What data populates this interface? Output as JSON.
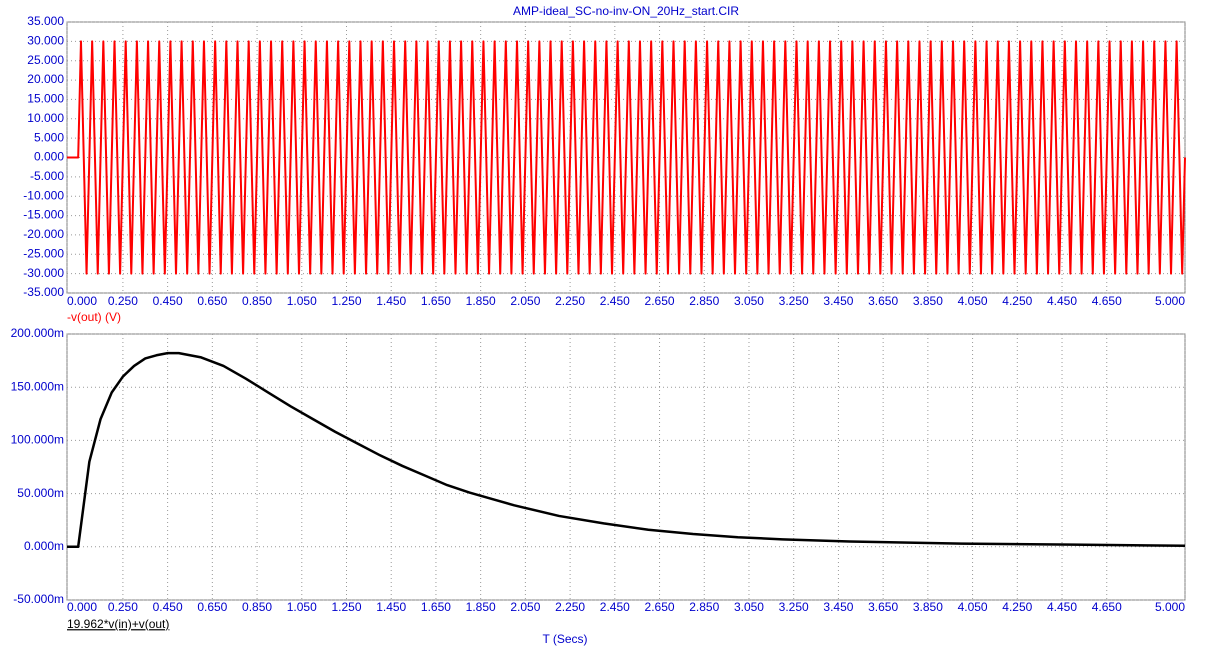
{
  "chart_data": [
    {
      "type": "line",
      "title": "AMP-ideal_SC-no-inv-ON_20Hz_start.CIR",
      "xlim": [
        0,
        5
      ],
      "ylim": [
        -35,
        35
      ],
      "xticks": [
        {
          "value": 0,
          "label": "0.000"
        },
        {
          "value": 0.25,
          "label": "0.250"
        },
        {
          "value": 0.45,
          "label": "0.450"
        },
        {
          "value": 0.65,
          "label": "0.650"
        },
        {
          "value": 0.85,
          "label": "0.850"
        },
        {
          "value": 1.05,
          "label": "1.050"
        },
        {
          "value": 1.25,
          "label": "1.250"
        },
        {
          "value": 1.45,
          "label": "1.450"
        },
        {
          "value": 1.65,
          "label": "1.650"
        },
        {
          "value": 1.85,
          "label": "1.850"
        },
        {
          "value": 2.05,
          "label": "2.050"
        },
        {
          "value": 2.25,
          "label": "2.250"
        },
        {
          "value": 2.45,
          "label": "2.450"
        },
        {
          "value": 2.65,
          "label": "2.650"
        },
        {
          "value": 2.85,
          "label": "2.850"
        },
        {
          "value": 3.05,
          "label": "3.050"
        },
        {
          "value": 3.25,
          "label": "3.250"
        },
        {
          "value": 3.45,
          "label": "3.450"
        },
        {
          "value": 3.65,
          "label": "3.650"
        },
        {
          "value": 3.85,
          "label": "3.850"
        },
        {
          "value": 4.05,
          "label": "4.050"
        },
        {
          "value": 4.25,
          "label": "4.250"
        },
        {
          "value": 4.45,
          "label": "4.450"
        },
        {
          "value": 4.65,
          "label": "4.650"
        },
        {
          "value": 5,
          "label": "5.000"
        }
      ],
      "yticks": [
        {
          "value": 35,
          "label": "35.000"
        },
        {
          "value": 30,
          "label": "30.000"
        },
        {
          "value": 25,
          "label": "25.000"
        },
        {
          "value": 20,
          "label": "20.000"
        },
        {
          "value": 15,
          "label": "15.000"
        },
        {
          "value": 10,
          "label": "10.000"
        },
        {
          "value": 5,
          "label": "5.000"
        },
        {
          "value": 0,
          "label": "0.000"
        },
        {
          "value": -5,
          "label": "-5.000"
        },
        {
          "value": -10,
          "label": "-10.000"
        },
        {
          "value": -15,
          "label": "-15.000"
        },
        {
          "value": -20,
          "label": "-20.000"
        },
        {
          "value": -25,
          "label": "-25.000"
        },
        {
          "value": -30,
          "label": "-30.000"
        },
        {
          "value": -35,
          "label": "-35.000"
        }
      ],
      "grid": true,
      "x": [
        0,
        0.05,
        0.0625,
        0.0875,
        0.1125,
        0.1375,
        0.1625,
        0.1875,
        0.2125,
        0.2375,
        0.2625,
        0.2875,
        0.3125,
        0.3375,
        0.3625,
        0.3875,
        0.4125,
        0.4375,
        0.4625,
        0.4875,
        0.5125,
        0.5375,
        0.5625,
        0.5875,
        0.6125,
        0.6375,
        0.6625,
        0.6875,
        0.7125,
        0.7375,
        0.7625,
        0.7875,
        0.8125,
        0.8375,
        0.8625,
        0.8875,
        0.9125,
        0.9375,
        0.9625,
        0.9875,
        1.0125,
        1.0375,
        1.0625,
        1.0875,
        1.1125,
        1.1375,
        1.1625,
        1.1875,
        1.2125,
        1.2375,
        1.2625,
        1.2875,
        1.3125,
        1.3375,
        1.3625,
        1.3875,
        1.4125,
        1.4375,
        1.4625,
        1.4875,
        1.5125,
        1.5375,
        1.5625,
        1.5875,
        1.6125,
        1.6375,
        1.6625,
        1.6875,
        1.7125,
        1.7375,
        1.7625,
        1.7875,
        1.8125,
        1.8375,
        1.8625,
        1.8875,
        1.9125,
        1.9375,
        1.9625,
        1.9875,
        2.0125,
        2.0375,
        2.0625,
        2.0875,
        2.1125,
        2.1375,
        2.1625,
        2.1875,
        2.2125,
        2.2375,
        2.2625,
        2.2875,
        2.3125,
        2.3375,
        2.3625,
        2.3875,
        2.4125,
        2.4375,
        2.4625,
        2.4875,
        2.5125,
        2.5375,
        2.5625,
        2.5875,
        2.6125,
        2.6375,
        2.6625,
        2.6875,
        2.7125,
        2.7375,
        2.7625,
        2.7875,
        2.8125,
        2.8375,
        2.8625,
        2.8875,
        2.9125,
        2.9375,
        2.9625,
        2.9875,
        3.0125,
        3.0375,
        3.0625,
        3.0875,
        3.1125,
        3.1375,
        3.1625,
        3.1875,
        3.2125,
        3.2375,
        3.2625,
        3.2875,
        3.3125,
        3.3375,
        3.3625,
        3.3875,
        3.4125,
        3.4375,
        3.4625,
        3.4875,
        3.5125,
        3.5375,
        3.5625,
        3.5875,
        3.6125,
        3.6375,
        3.6625,
        3.6875,
        3.7125,
        3.7375,
        3.7625,
        3.7875,
        3.8125,
        3.8375,
        3.8625,
        3.8875,
        3.9125,
        3.9375,
        3.9625,
        3.9875,
        4.0125,
        4.0375,
        4.0625,
        4.0875,
        4.1125,
        4.1375,
        4.1625,
        4.1875,
        4.2125,
        4.2375,
        4.2625,
        4.2875,
        4.3125,
        4.3375,
        4.3625,
        4.3875,
        4.4125,
        4.4375,
        4.4625,
        4.4875,
        4.5125,
        4.5375,
        4.5625,
        4.5875,
        4.6125,
        4.6375,
        4.6625,
        4.6875,
        4.7125,
        4.7375,
        4.7625,
        4.7875,
        4.8125,
        4.8375,
        4.8625,
        4.8875,
        4.9125,
        4.9375,
        4.9625,
        4.9875,
        5
      ],
      "series": [
        {
          "name": "-v(out) (V)",
          "color": "#ff0000",
          "values": [
            0,
            0,
            30,
            -30,
            30,
            -30,
            30,
            -30,
            30,
            -30,
            30,
            -30,
            30,
            -30,
            30,
            -30,
            30,
            -30,
            30,
            -30,
            30,
            -30,
            30,
            -30,
            30,
            -30,
            30,
            -30,
            30,
            -30,
            30,
            -30,
            30,
            -30,
            30,
            -30,
            30,
            -30,
            30,
            -30,
            30,
            -30,
            30,
            -30,
            30,
            -30,
            30,
            -30,
            30,
            -30,
            30,
            -30,
            30,
            -30,
            30,
            -30,
            30,
            -30,
            30,
            -30,
            30,
            -30,
            30,
            -30,
            30,
            -30,
            30,
            -30,
            30,
            -30,
            30,
            -30,
            30,
            -30,
            30,
            -30,
            30,
            -30,
            30,
            -30,
            30,
            -30,
            30,
            -30,
            30,
            -30,
            30,
            -30,
            30,
            -30,
            30,
            -30,
            30,
            -30,
            30,
            -30,
            30,
            -30,
            30,
            -30,
            30,
            -30,
            30,
            -30,
            30,
            -30,
            30,
            -30,
            30,
            -30,
            30,
            -30,
            30,
            -30,
            30,
            -30,
            30,
            -30,
            30,
            -30,
            30,
            -30,
            30,
            -30,
            30,
            -30,
            30,
            -30,
            30,
            -30,
            30,
            -30,
            30,
            -30,
            30,
            -30,
            30,
            -30,
            30,
            -30,
            30,
            -30,
            30,
            -30,
            30,
            -30,
            30,
            -30,
            30,
            -30,
            30,
            -30,
            30,
            -30,
            30,
            -30,
            30,
            -30,
            30,
            -30,
            30,
            -30,
            30,
            -30,
            30,
            -30,
            30,
            -30,
            30,
            -30,
            30,
            -30,
            30,
            -30,
            30,
            -30,
            30,
            -30,
            30,
            -30,
            30,
            -30,
            30,
            -30,
            30,
            -30,
            30,
            -30,
            30,
            -30,
            30,
            -30,
            30,
            -30,
            30,
            -30,
            30,
            -30,
            30,
            -30,
            0
          ]
        }
      ]
    },
    {
      "type": "line",
      "xlabel": "T (Secs)",
      "xlim": [
        0,
        5
      ],
      "ylim": [
        -0.05,
        0.2
      ],
      "xticks": [
        {
          "value": 0,
          "label": "0.000"
        },
        {
          "value": 0.25,
          "label": "0.250"
        },
        {
          "value": 0.45,
          "label": "0.450"
        },
        {
          "value": 0.65,
          "label": "0.650"
        },
        {
          "value": 0.85,
          "label": "0.850"
        },
        {
          "value": 1.05,
          "label": "1.050"
        },
        {
          "value": 1.25,
          "label": "1.250"
        },
        {
          "value": 1.45,
          "label": "1.450"
        },
        {
          "value": 1.65,
          "label": "1.650"
        },
        {
          "value": 1.85,
          "label": "1.850"
        },
        {
          "value": 2.05,
          "label": "2.050"
        },
        {
          "value": 2.25,
          "label": "2.250"
        },
        {
          "value": 2.45,
          "label": "2.450"
        },
        {
          "value": 2.65,
          "label": "2.650"
        },
        {
          "value": 2.85,
          "label": "2.850"
        },
        {
          "value": 3.05,
          "label": "3.050"
        },
        {
          "value": 3.25,
          "label": "3.250"
        },
        {
          "value": 3.45,
          "label": "3.450"
        },
        {
          "value": 3.65,
          "label": "3.650"
        },
        {
          "value": 3.85,
          "label": "3.850"
        },
        {
          "value": 4.05,
          "label": "4.050"
        },
        {
          "value": 4.25,
          "label": "4.250"
        },
        {
          "value": 4.45,
          "label": "4.450"
        },
        {
          "value": 4.65,
          "label": "4.650"
        },
        {
          "value": 5,
          "label": "5.000"
        }
      ],
      "yticks": [
        {
          "value": 0.2,
          "label": "200.000m"
        },
        {
          "value": 0.15,
          "label": "150.000m"
        },
        {
          "value": 0.1,
          "label": "100.000m"
        },
        {
          "value": 0.05,
          "label": "50.000m"
        },
        {
          "value": 0,
          "label": "0.000m"
        },
        {
          "value": -0.05,
          "label": "-50.000m"
        }
      ],
      "grid": true,
      "x": [
        0,
        0.05,
        0.1,
        0.15,
        0.2,
        0.25,
        0.3,
        0.35,
        0.4,
        0.45,
        0.5,
        0.6,
        0.7,
        0.8,
        0.9,
        1.0,
        1.1,
        1.2,
        1.3,
        1.4,
        1.5,
        1.6,
        1.7,
        1.8,
        1.9,
        2.0,
        2.2,
        2.4,
        2.6,
        2.8,
        3.0,
        3.2,
        3.5,
        4.0,
        4.5,
        5.0
      ],
      "series": [
        {
          "name": "19.962*v(in)+v(out)",
          "color": "#000000",
          "values": [
            0,
            0,
            0.08,
            0.12,
            0.145,
            0.16,
            0.17,
            0.177,
            0.18,
            0.182,
            0.182,
            0.178,
            0.17,
            0.158,
            0.145,
            0.132,
            0.12,
            0.108,
            0.097,
            0.086,
            0.076,
            0.067,
            0.058,
            0.051,
            0.045,
            0.039,
            0.029,
            0.022,
            0.016,
            0.012,
            0.009,
            0.007,
            0.005,
            0.003,
            0.002,
            0.001
          ]
        }
      ]
    }
  ]
}
